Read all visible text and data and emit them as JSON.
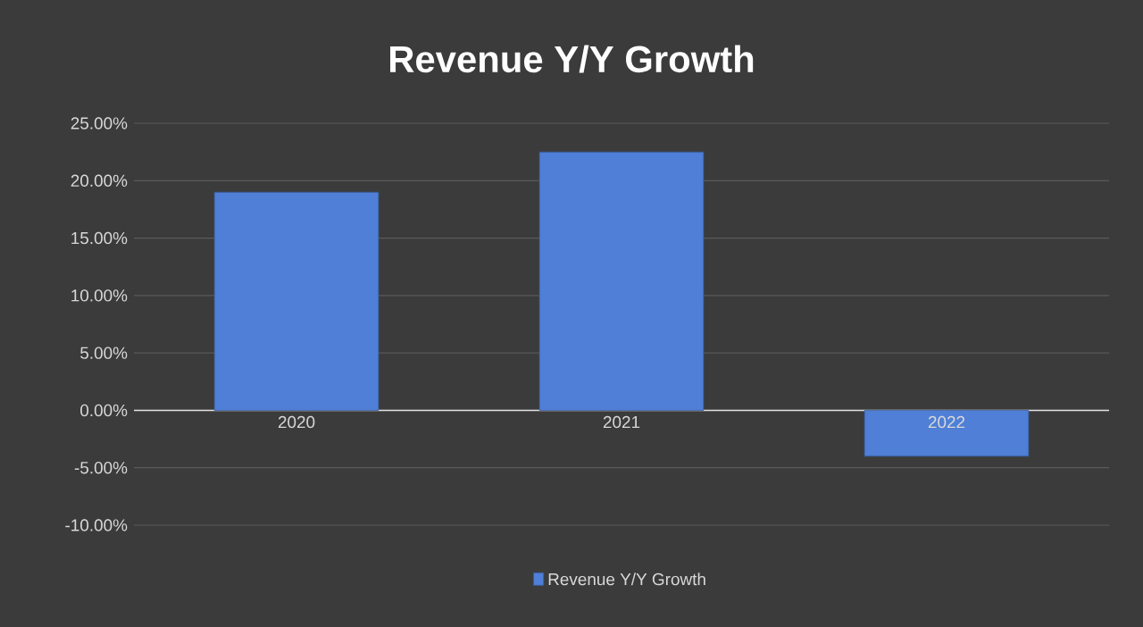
{
  "chart_data": {
    "type": "bar",
    "title": "Revenue Y/Y Growth",
    "categories": [
      "2020",
      "2021",
      "2022"
    ],
    "series": [
      {
        "name": "Revenue Y/Y Growth",
        "color": "#4f7fd6",
        "values": [
          19.0,
          22.5,
          -4.0
        ]
      }
    ],
    "ylim": [
      -10,
      25
    ],
    "yticks": [
      {
        "value": -10,
        "label": "-10.00%"
      },
      {
        "value": -5,
        "label": "-5.00%"
      },
      {
        "value": 0,
        "label": "0.00%"
      },
      {
        "value": 5,
        "label": "5.00%"
      },
      {
        "value": 10,
        "label": "10.00%"
      },
      {
        "value": 15,
        "label": "15.00%"
      },
      {
        "value": 20,
        "label": "20.00%"
      },
      {
        "value": 25,
        "label": "25.00%"
      }
    ],
    "grid": "y",
    "legend": "bottom"
  }
}
